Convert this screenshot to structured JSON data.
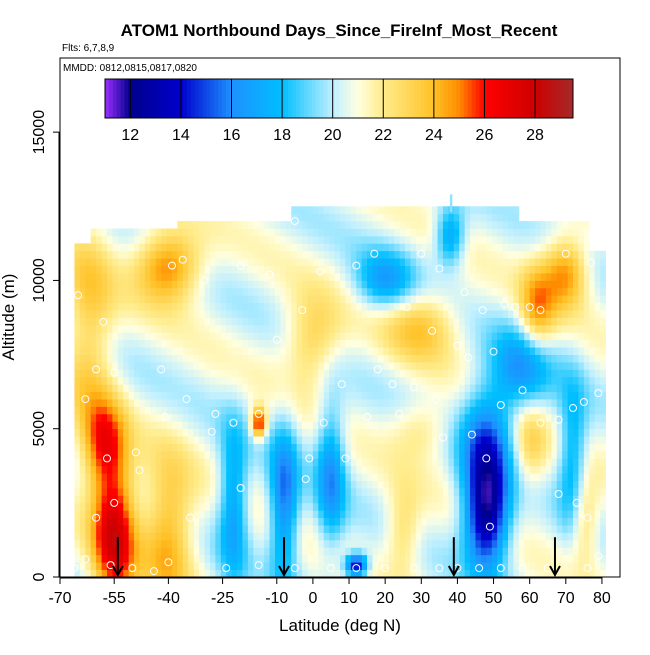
{
  "chart_data": {
    "type": "heatmap",
    "title": "ATOM1 Northbound Days_Since_FireInf_Most_Recent",
    "subtitle_flights": "Flts: 6,7,8,9",
    "subtitle_dates": "MMDD: 0812,0815,0817,0820",
    "xlabel": "Latitude (deg N)",
    "ylabel": "Altitude (m)",
    "xlim": [
      -70,
      85
    ],
    "ylim": [
      0,
      17500
    ],
    "x_ticks": [
      -70,
      -55,
      -40,
      -25,
      -10,
      0,
      10,
      20,
      30,
      40,
      50,
      60,
      70,
      80
    ],
    "x_tick_labels": [
      "-70",
      "-55",
      "-40",
      "-25",
      "-10",
      "0",
      "10",
      "20",
      "30",
      "40",
      "50",
      "60",
      "70",
      "80"
    ],
    "y_ticks": [
      0,
      5000,
      10000,
      15000
    ],
    "y_tick_labels": [
      "0",
      "5000",
      "10000",
      "15000"
    ],
    "colorbar": {
      "range": [
        11,
        29.5
      ],
      "ticks": [
        12,
        14,
        16,
        18,
        20,
        22,
        24,
        26,
        28
      ],
      "tick_labels": [
        "12",
        "14",
        "16",
        "18",
        "20",
        "22",
        "24",
        "26",
        "28"
      ],
      "stops": [
        {
          "v": 11,
          "color": "#9b30ff"
        },
        {
          "v": 12,
          "color": "#00008b"
        },
        {
          "v": 14,
          "color": "#0000cd"
        },
        {
          "v": 16,
          "color": "#1e90ff"
        },
        {
          "v": 18,
          "color": "#00bfff"
        },
        {
          "v": 20,
          "color": "#bfefff"
        },
        {
          "v": 21,
          "color": "#ffffe0"
        },
        {
          "v": 22,
          "color": "#ffec8b"
        },
        {
          "v": 24,
          "color": "#ffc125"
        },
        {
          "v": 25,
          "color": "#ff8c00"
        },
        {
          "v": 26,
          "color": "#ff0000"
        },
        {
          "v": 28,
          "color": "#cd0000"
        },
        {
          "v": 29.5,
          "color": "#a52a2a"
        }
      ]
    },
    "features": [
      {
        "lat": -55,
        "alt": 1500,
        "value": 27.5,
        "slat": 6,
        "salt": 2500
      },
      {
        "lat": -58,
        "alt": 4500,
        "value": 25,
        "slat": 6,
        "salt": 1500
      },
      {
        "lat": -40,
        "alt": 1500,
        "value": 24.5,
        "slat": 7,
        "salt": 2500
      },
      {
        "lat": -40,
        "alt": 10500,
        "value": 25.5,
        "slat": 9,
        "salt": 1200
      },
      {
        "lat": -62,
        "alt": 8500,
        "value": 23.5,
        "slat": 7,
        "salt": 3500
      },
      {
        "lat": -22,
        "alt": 2500,
        "value": 16.5,
        "slat": 4,
        "salt": 2500
      },
      {
        "lat": -8,
        "alt": 2500,
        "value": 15.5,
        "slat": 4,
        "salt": 2500
      },
      {
        "lat": -15,
        "alt": 5200,
        "value": 27,
        "slat": 2,
        "salt": 500
      },
      {
        "lat": 5,
        "alt": 3500,
        "value": 16.5,
        "slat": 4,
        "salt": 2500
      },
      {
        "lat": 12,
        "alt": 400,
        "value": 13,
        "slat": 3,
        "salt": 400
      },
      {
        "lat": 0,
        "alt": 8000,
        "value": 23.5,
        "slat": 8,
        "salt": 1500
      },
      {
        "lat": 20,
        "alt": 10000,
        "value": 17,
        "slat": 8,
        "salt": 1000
      },
      {
        "lat": 38,
        "alt": 11500,
        "value": 16.5,
        "slat": 4,
        "salt": 1000
      },
      {
        "lat": 48,
        "alt": 2000,
        "value": 12.5,
        "slat": 6,
        "salt": 1800
      },
      {
        "lat": 48,
        "alt": 4500,
        "value": 15.5,
        "slat": 7,
        "salt": 2000
      },
      {
        "lat": 58,
        "alt": 7000,
        "value": 16.5,
        "slat": 8,
        "salt": 1500
      },
      {
        "lat": 70,
        "alt": 10300,
        "value": 25,
        "slat": 6,
        "salt": 1200
      },
      {
        "lat": 62,
        "alt": 9000,
        "value": 24.5,
        "slat": 5,
        "salt": 1500
      },
      {
        "lat": 60,
        "alt": 4500,
        "value": 23,
        "slat": 5,
        "salt": 1500
      },
      {
        "lat": 30,
        "alt": 8500,
        "value": 23.5,
        "slat": 10,
        "salt": 1200
      },
      {
        "lat": 30,
        "alt": 5000,
        "value": 22.5,
        "slat": 8,
        "salt": 1000
      },
      {
        "lat": 72,
        "alt": 4000,
        "value": 17,
        "slat": 4,
        "salt": 2500
      },
      {
        "lat": 75,
        "alt": 2000,
        "value": 23.5,
        "slat": 4,
        "salt": 1500
      },
      {
        "lat": 25,
        "alt": 1500,
        "value": 23,
        "slat": 5,
        "salt": 1500
      }
    ],
    "profile_markers_lat": [
      -54,
      -8,
      39,
      67
    ],
    "observations": [
      [
        -66,
        300
      ],
      [
        -63,
        600
      ],
      [
        -56,
        400
      ],
      [
        -50,
        300
      ],
      [
        -44,
        200
      ],
      [
        -40,
        500
      ],
      [
        -57,
        4000
      ],
      [
        -55,
        2500
      ],
      [
        -48,
        3600
      ],
      [
        -63,
        6000
      ],
      [
        -60,
        7000
      ],
      [
        -55,
        6900
      ],
      [
        -65,
        9500
      ],
      [
        -58,
        8600
      ],
      [
        -39,
        10500
      ],
      [
        -36,
        10700
      ],
      [
        -30,
        10000
      ],
      [
        -20,
        10500
      ],
      [
        -12,
        10200
      ],
      [
        -5,
        12000
      ],
      [
        -15,
        5500
      ],
      [
        -22,
        5200
      ],
      [
        -27,
        5500
      ],
      [
        -35,
        6000
      ],
      [
        -42,
        7000
      ],
      [
        -10,
        8000
      ],
      [
        -3,
        9000
      ],
      [
        -1,
        4000
      ],
      [
        3,
        5200
      ],
      [
        9,
        4000
      ],
      [
        12,
        10500
      ],
      [
        17,
        10900
      ],
      [
        2,
        10300
      ],
      [
        -24,
        300
      ],
      [
        -15,
        400
      ],
      [
        -5,
        300
      ],
      [
        5,
        300
      ],
      [
        12,
        300
      ],
      [
        20,
        300
      ],
      [
        28,
        300
      ],
      [
        35,
        300
      ],
      [
        40,
        300
      ],
      [
        46,
        300
      ],
      [
        52,
        300
      ],
      [
        58,
        300
      ],
      [
        65,
        300
      ],
      [
        76,
        300
      ],
      [
        79,
        700
      ],
      [
        30,
        10900
      ],
      [
        35,
        10400
      ],
      [
        42,
        9600
      ],
      [
        47,
        9000
      ],
      [
        53,
        9200
      ],
      [
        56,
        9100
      ],
      [
        60,
        9100
      ],
      [
        63,
        9000
      ],
      [
        70,
        10900
      ],
      [
        77,
        10600
      ],
      [
        22,
        6500
      ],
      [
        28,
        6400
      ],
      [
        34,
        6000
      ],
      [
        40,
        7800
      ],
      [
        43,
        7400
      ],
      [
        36,
        4700
      ],
      [
        44,
        4800
      ],
      [
        52,
        5800
      ],
      [
        58,
        6300
      ],
      [
        63,
        5200
      ],
      [
        68,
        5300
      ],
      [
        72,
        5700
      ],
      [
        75,
        5900
      ],
      [
        79,
        6200
      ],
      [
        48,
        4000
      ],
      [
        49,
        1700
      ],
      [
        68,
        2800
      ],
      [
        76,
        2000
      ],
      [
        73,
        2500
      ],
      [
        24,
        5500
      ],
      [
        15,
        5400
      ],
      [
        -34,
        2000
      ],
      [
        -20,
        3000
      ],
      [
        -2,
        3300
      ],
      [
        8,
        6500
      ],
      [
        18,
        7000
      ],
      [
        50,
        7600
      ],
      [
        33,
        8300
      ],
      [
        26,
        9100
      ],
      [
        -28,
        4900
      ],
      [
        -41,
        5400
      ],
      [
        -49,
        4200
      ],
      [
        -60,
        2000
      ]
    ]
  }
}
